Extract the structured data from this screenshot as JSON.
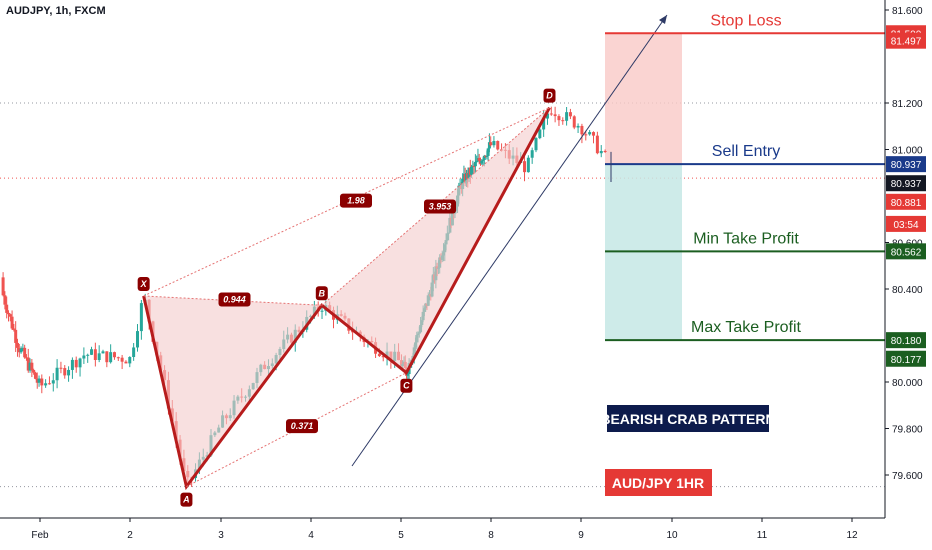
{
  "header": {
    "symbol": "AUDJPY, 1h, FXCM"
  },
  "chart_data": {
    "type": "candlestick",
    "symbol": "AUDJPY",
    "timeframe": "1h",
    "broker": "FXCM",
    "x_ticks": [
      "Feb",
      "2",
      "3",
      "4",
      "5",
      "8",
      "9",
      "10",
      "11",
      "12"
    ],
    "y_ticks": [
      "81.600",
      "81.200",
      "81.000",
      "80.600",
      "80.400",
      "80.000",
      "79.800",
      "79.600"
    ],
    "ylim": [
      79.45,
      81.65
    ],
    "pattern": {
      "points": [
        {
          "label": "X",
          "day": 2.15,
          "price": 80.37
        },
        {
          "label": "A",
          "day": 2.62,
          "price": 79.55
        },
        {
          "label": "B",
          "day": 4.12,
          "price": 80.33
        },
        {
          "label": "C",
          "day": 5.18,
          "price": 80.04
        },
        {
          "label": "D",
          "day": 8.65,
          "price": 81.18
        }
      ],
      "ratios": [
        {
          "text": "0.944",
          "day": 3.15,
          "price": 80.355
        },
        {
          "text": "1.98",
          "day": 4.5,
          "price": 80.78
        },
        {
          "text": "0.371",
          "day": 3.9,
          "price": 79.81
        },
        {
          "text": "3.953",
          "day": 6.3,
          "price": 80.755
        }
      ]
    },
    "levels": [
      {
        "name": "Stop Loss",
        "price": 81.5,
        "color": "#e53935"
      },
      {
        "name": "Sell Entry",
        "price": 80.937,
        "color": "#1a3a8a"
      },
      {
        "name": "Min Take Profit",
        "price": 80.562,
        "color": "#1b5e20"
      },
      {
        "name": "Max Take Profit",
        "price": 80.18,
        "color": "#1b5e20"
      }
    ],
    "price_tags": [
      {
        "text": "81.500",
        "price": 81.5,
        "color": "#e53935"
      },
      {
        "text": "81.497",
        "price": 81.468,
        "color": "#e53935"
      },
      {
        "text": "80.937",
        "price": 80.937,
        "color": "#1a3a8a"
      },
      {
        "text": "80.937",
        "price": 80.855,
        "color": "#131722"
      },
      {
        "text": "80.881",
        "price": 80.775,
        "color": "#e53935"
      },
      {
        "text": "03:54",
        "price": 80.68,
        "color": "#e53935"
      },
      {
        "text": "80.562",
        "price": 80.562,
        "color": "#1b5e20"
      },
      {
        "text": "80.180",
        "price": 80.18,
        "color": "#1b5e20"
      },
      {
        "text": "80.177",
        "price": 80.1,
        "color": "#1b5e20"
      }
    ],
    "annotations": [
      {
        "text": "BEARISH CRAB PATTERN",
        "bg": "#0d1b4c"
      },
      {
        "text": "AUD/JPY   1HR",
        "bg": "#e53935"
      }
    ],
    "colors": {
      "bull": "#26a69a",
      "bear": "#ef5350",
      "pattern": "#b71c1c"
    }
  }
}
